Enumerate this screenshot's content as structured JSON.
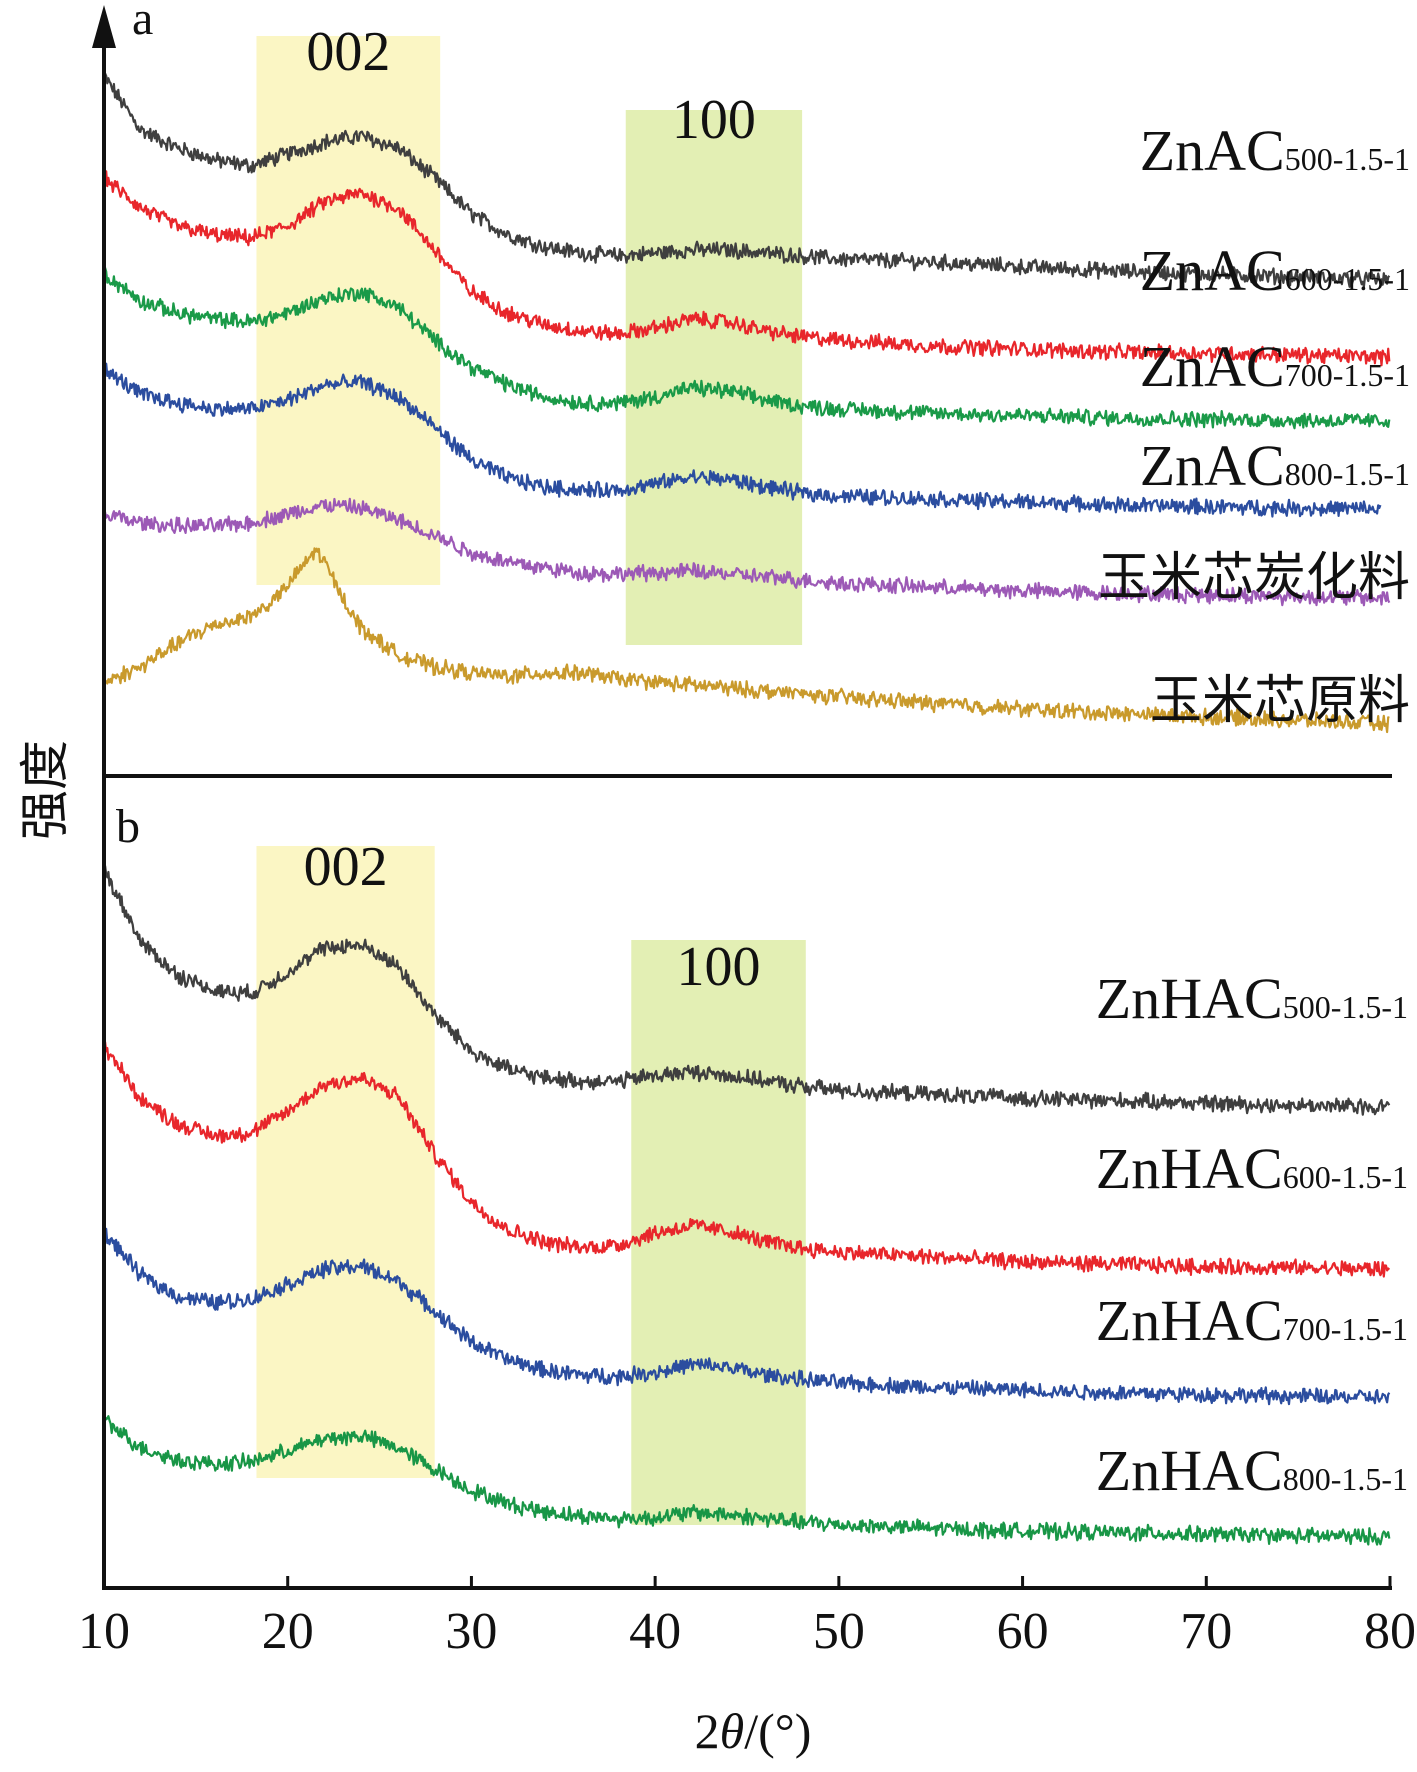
{
  "chart_data": [
    {
      "type": "line",
      "panel": "a",
      "xlim": [
        10,
        80
      ],
      "xticks": [
        10,
        20,
        30,
        40,
        50,
        60,
        70,
        80
      ],
      "highlight_bands": [
        {
          "label": "002",
          "from": 18.3,
          "to": 28.3,
          "color": "#fbf6c4"
        },
        {
          "label": "100",
          "from": 38.4,
          "to": 48.0,
          "color": "#e3efb4"
        }
      ],
      "series": [
        {
          "name": "ZnAC",
          "sub": "500-1.5-1",
          "color": "#3f3f3f",
          "x": [
            10,
            12,
            14,
            16,
            18,
            20,
            22,
            24,
            26,
            28,
            30,
            32,
            34,
            36,
            38,
            40,
            42,
            44,
            46,
            48,
            50,
            55,
            60,
            65,
            70,
            75,
            80
          ],
          "y": [
            11.4,
            10.5,
            10.2,
            10.0,
            9.9,
            10.1,
            10.3,
            10.4,
            10.2,
            9.7,
            9.1,
            8.75,
            8.55,
            8.45,
            8.4,
            8.45,
            8.5,
            8.5,
            8.45,
            8.4,
            8.35,
            8.3,
            8.22,
            8.15,
            8.1,
            8.05,
            8.0
          ]
        },
        {
          "name": "ZnAC",
          "sub": "600-1.5-1",
          "color": "#e8262b",
          "x": [
            10,
            12,
            14,
            16,
            18,
            20,
            22,
            24,
            26,
            28,
            30,
            32,
            34,
            36,
            38,
            40,
            42,
            44,
            46,
            48,
            50,
            55,
            60,
            65,
            70,
            75,
            80
          ],
          "y": [
            9.7,
            9.2,
            8.9,
            8.75,
            8.7,
            8.9,
            9.3,
            9.45,
            9.2,
            8.5,
            7.8,
            7.45,
            7.25,
            7.15,
            7.1,
            7.2,
            7.35,
            7.3,
            7.15,
            7.05,
            7.0,
            6.9,
            6.85,
            6.8,
            6.78,
            6.75,
            6.72
          ]
        },
        {
          "name": "ZnAC",
          "sub": "700-1.5-1",
          "color": "#1a9a48",
          "x": [
            10,
            12,
            14,
            16,
            18,
            20,
            22,
            24,
            26,
            28,
            30,
            32,
            34,
            36,
            38,
            40,
            42,
            44,
            46,
            48,
            50,
            55,
            60,
            65,
            70,
            75,
            80
          ],
          "y": [
            8.1,
            7.65,
            7.45,
            7.35,
            7.3,
            7.45,
            7.7,
            7.8,
            7.55,
            7.0,
            6.55,
            6.25,
            6.05,
            5.95,
            5.95,
            6.05,
            6.2,
            6.15,
            6.0,
            5.9,
            5.85,
            5.78,
            5.74,
            5.7,
            5.68,
            5.66,
            5.65
          ]
        },
        {
          "name": "ZnAC",
          "sub": "800-1.5-1",
          "color": "#2b4d9f",
          "x": [
            10,
            12,
            14,
            16,
            18,
            20,
            22,
            24,
            26,
            28,
            30,
            32,
            34,
            36,
            38,
            40,
            42,
            44,
            46,
            48,
            50,
            55,
            60,
            65,
            70,
            75,
            79.5
          ],
          "y": [
            6.5,
            6.1,
            5.95,
            5.85,
            5.85,
            6.0,
            6.25,
            6.3,
            6.05,
            5.55,
            5.0,
            4.7,
            4.55,
            4.5,
            4.5,
            4.6,
            4.72,
            4.68,
            4.55,
            4.45,
            4.4,
            4.35,
            4.3,
            4.25,
            4.22,
            4.2,
            4.18
          ]
        },
        {
          "name": "玉米芯炭化料",
          "sub": "",
          "color": "#9c59b6",
          "x": [
            10,
            12,
            14,
            16,
            18,
            20,
            22,
            24,
            26,
            28,
            30,
            32,
            34,
            36,
            38,
            40,
            42,
            44,
            46,
            48,
            50,
            55,
            60,
            65,
            70,
            75,
            80
          ],
          "y": [
            4.1,
            3.95,
            3.9,
            3.9,
            3.95,
            4.1,
            4.25,
            4.2,
            4.0,
            3.75,
            3.45,
            3.3,
            3.2,
            3.12,
            3.1,
            3.12,
            3.15,
            3.1,
            3.05,
            3.0,
            2.95,
            2.88,
            2.82,
            2.78,
            2.75,
            2.72,
            2.7
          ]
        },
        {
          "name": "玉米芯原料",
          "sub": "",
          "color": "#c99a2c",
          "x": [
            10,
            12,
            14,
            16,
            18,
            19,
            20,
            21,
            21.5,
            22,
            23,
            24,
            26,
            28,
            30,
            32,
            34,
            36,
            38,
            40,
            44,
            48,
            50,
            55,
            60,
            65,
            70,
            75,
            80
          ],
          "y": [
            1.3,
            1.55,
            1.95,
            2.25,
            2.4,
            2.6,
            2.9,
            3.3,
            3.5,
            3.3,
            2.7,
            2.2,
            1.75,
            1.55,
            1.45,
            1.4,
            1.45,
            1.45,
            1.35,
            1.3,
            1.2,
            1.1,
            1.05,
            0.95,
            0.85,
            0.78,
            0.72,
            0.66,
            0.6
          ]
        }
      ]
    },
    {
      "type": "line",
      "panel": "b",
      "xlim": [
        10,
        80
      ],
      "xticks": [
        10,
        20,
        30,
        40,
        50,
        60,
        70,
        80
      ],
      "highlight_bands": [
        {
          "label": "002",
          "from": 18.3,
          "to": 28.0,
          "color": "#fbf6c4"
        },
        {
          "label": "100",
          "from": 38.7,
          "to": 48.2,
          "color": "#e3efb4"
        }
      ],
      "series": [
        {
          "name": "ZnHAC",
          "sub": "500-1.5-1",
          "color": "#3f3f3f",
          "x": [
            10,
            12,
            14,
            16,
            18,
            20,
            22,
            24,
            26,
            28,
            30,
            32,
            34,
            36,
            38,
            40,
            42,
            44,
            46,
            48,
            50,
            55,
            60,
            65,
            70,
            75,
            80
          ],
          "y": [
            11.6,
            10.4,
            9.85,
            9.6,
            9.55,
            9.9,
            10.3,
            10.35,
            10.0,
            9.2,
            8.6,
            8.3,
            8.15,
            8.1,
            8.1,
            8.2,
            8.25,
            8.2,
            8.1,
            8.02,
            7.95,
            7.88,
            7.82,
            7.78,
            7.74,
            7.7,
            7.68
          ]
        },
        {
          "name": "ZnHAC",
          "sub": "600-1.5-1",
          "color": "#e8262b",
          "x": [
            10,
            12,
            14,
            16,
            18,
            20,
            22,
            24,
            26,
            28,
            30,
            32,
            34,
            36,
            38,
            40,
            42,
            44,
            46,
            48,
            50,
            55,
            60,
            65,
            70,
            75,
            80
          ],
          "y": [
            8.7,
            7.8,
            7.4,
            7.2,
            7.25,
            7.6,
            8.05,
            8.15,
            7.85,
            6.9,
            6.1,
            5.65,
            5.45,
            5.35,
            5.4,
            5.6,
            5.72,
            5.62,
            5.45,
            5.35,
            5.28,
            5.2,
            5.12,
            5.08,
            5.04,
            5.02,
            5.0
          ]
        },
        {
          "name": "ZnHAC",
          "sub": "700-1.5-1",
          "color": "#2b4d9f",
          "x": [
            10,
            12,
            14,
            16,
            18,
            20,
            22,
            24,
            26,
            28,
            30,
            32,
            34,
            36,
            38,
            40,
            42,
            44,
            46,
            48,
            50,
            55,
            60,
            65,
            70,
            75,
            80
          ],
          "y": [
            5.6,
            4.9,
            4.55,
            4.45,
            4.5,
            4.75,
            5.0,
            5.05,
            4.8,
            4.3,
            3.8,
            3.5,
            3.33,
            3.25,
            3.23,
            3.3,
            3.42,
            3.38,
            3.25,
            3.18,
            3.12,
            3.05,
            3.0,
            2.96,
            2.93,
            2.9,
            2.88
          ]
        },
        {
          "name": "ZnHAC",
          "sub": "800-1.5-1",
          "color": "#189646",
          "x": [
            10,
            12,
            14,
            16,
            18,
            20,
            22,
            24,
            26,
            28,
            30,
            32,
            34,
            36,
            38,
            40,
            42,
            44,
            46,
            48,
            50,
            55,
            60,
            65,
            70,
            75,
            80
          ],
          "y": [
            2.5,
            2.05,
            1.85,
            1.78,
            1.82,
            2.0,
            2.2,
            2.25,
            2.05,
            1.7,
            1.35,
            1.12,
            1.0,
            0.92,
            0.88,
            0.9,
            0.98,
            0.95,
            0.88,
            0.82,
            0.78,
            0.72,
            0.68,
            0.65,
            0.62,
            0.6,
            0.58
          ]
        }
      ]
    }
  ],
  "text": {
    "ylabel": "强度",
    "xlabel_prefix": "2",
    "xlabel_theta": "θ",
    "xlabel_suffix": "/(°)",
    "panel_a_label": "a",
    "panel_b_label": "b"
  }
}
